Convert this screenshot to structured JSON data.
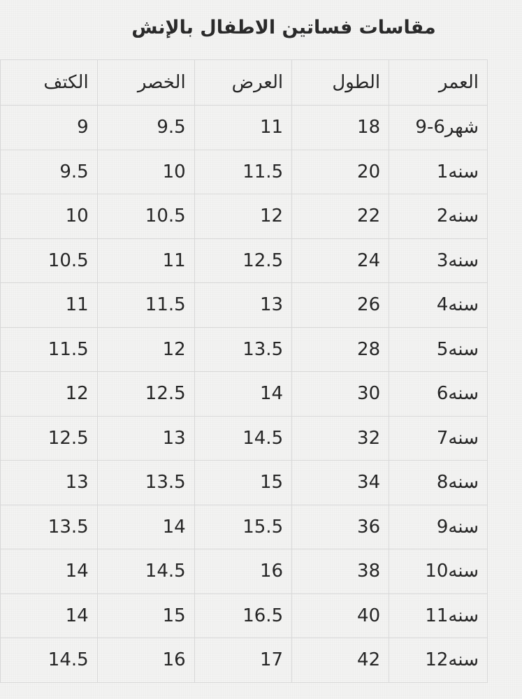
{
  "title": "مقاسات فساتين الاطفال بالإنش",
  "table": {
    "headers": [
      "العمر",
      "الطول",
      "العرض",
      "الخصر",
      "الكتف"
    ],
    "rows": [
      [
        "9-6شهر",
        "18",
        "11",
        "9.5",
        "9"
      ],
      [
        "1سنه",
        "20",
        "11.5",
        "10",
        "9.5"
      ],
      [
        "2سنه",
        "22",
        "12",
        "10.5",
        "10"
      ],
      [
        "3سنه",
        "24",
        "12.5",
        "11",
        "10.5"
      ],
      [
        "4سنه",
        "26",
        "13",
        "11.5",
        "11"
      ],
      [
        "5سنه",
        "28",
        "13.5",
        "12",
        "11.5"
      ],
      [
        "6سنه",
        "30",
        "14",
        "12.5",
        "12"
      ],
      [
        "7سنه",
        "32",
        "14.5",
        "13",
        "12.5"
      ],
      [
        "8سنه",
        "34",
        "15",
        "13.5",
        "13"
      ],
      [
        "9سنه",
        "36",
        "15.5",
        "14",
        "13.5"
      ],
      [
        "10سنه",
        "38",
        "16",
        "14.5",
        "14"
      ],
      [
        "11سنه",
        "40",
        "16.5",
        "15",
        "14"
      ],
      [
        "12سنه",
        "42",
        "17",
        "16",
        "14.5"
      ]
    ]
  }
}
